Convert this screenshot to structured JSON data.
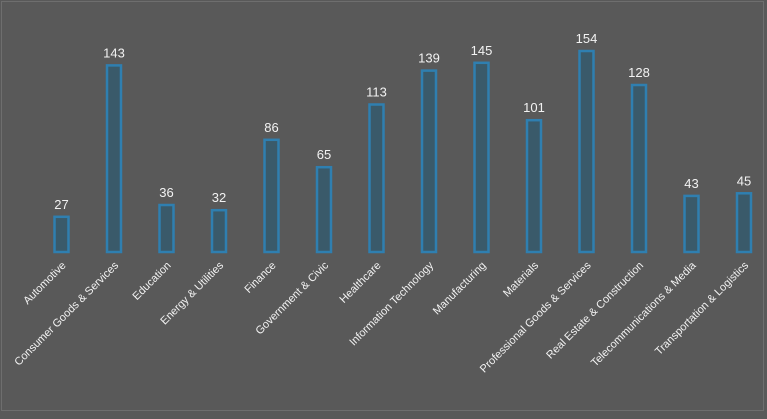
{
  "colors": {
    "background": "#595959",
    "bar_fill": "#3a5a6a",
    "bar_stroke": "#2f7fb0",
    "label_text": "#f2f2f2"
  },
  "chart_data": {
    "type": "bar",
    "title": "",
    "xlabel": "",
    "ylabel": "",
    "grid": false,
    "legend": "none",
    "ylim": [
      0,
      160
    ],
    "categories": [
      "Automotive",
      "Consumer Goods & Services",
      "Education",
      "Energy & Utilities",
      "Finance",
      "Government & Civic",
      "Healthcare",
      "Information Technology",
      "Manufacturing",
      "Materials",
      "Professional Goods & Services",
      "Real Estate & Construction",
      "Telecommunications & Media",
      "Transportation & Logistics"
    ],
    "values": [
      27,
      143,
      36,
      32,
      86,
      65,
      113,
      139,
      145,
      101,
      154,
      128,
      43,
      45
    ]
  }
}
